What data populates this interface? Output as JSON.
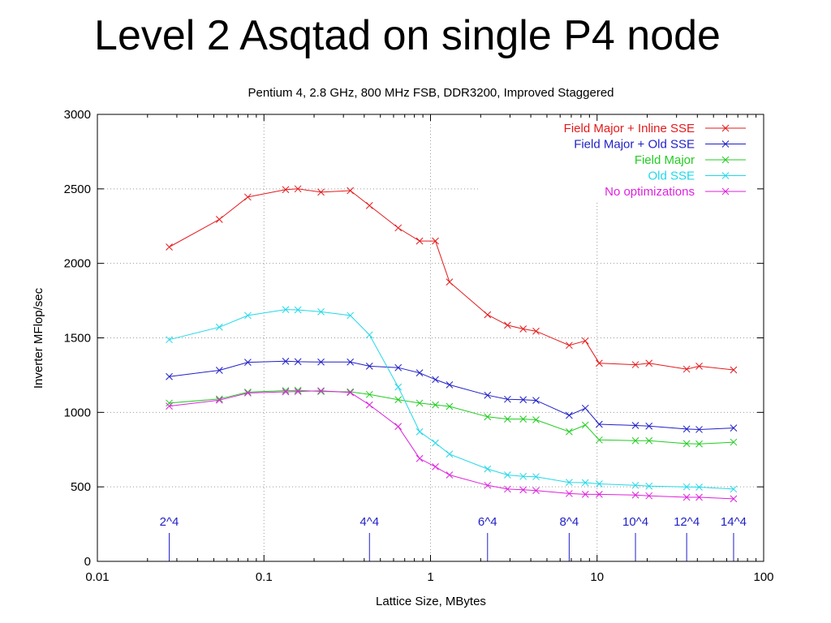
{
  "slide": {
    "title": "Level 2 Asqtad on single P4 node"
  },
  "chart_data": {
    "type": "line",
    "title": "Pentium 4, 2.8 GHz, 800 MHz FSB, DDR3200, Improved Staggered",
    "xlabel": "Lattice Size, MBytes",
    "ylabel": "Inverter MFlop/sec",
    "xscale": "log",
    "xlim": [
      0.01,
      100
    ],
    "ylim": [
      0,
      3000
    ],
    "grid": true,
    "legend_position": "top-right",
    "xticks": [
      {
        "value": 0.01,
        "label": "0.01"
      },
      {
        "value": 0.1,
        "label": "0.1"
      },
      {
        "value": 1,
        "label": "1"
      },
      {
        "value": 10,
        "label": "10"
      },
      {
        "value": 100,
        "label": "100"
      }
    ],
    "yticks": [
      {
        "value": 0,
        "label": "0"
      },
      {
        "value": 500,
        "label": "500"
      },
      {
        "value": 1000,
        "label": "1000"
      },
      {
        "value": 1500,
        "label": "1500"
      },
      {
        "value": 2000,
        "label": "2000"
      },
      {
        "value": 2500,
        "label": "2500"
      },
      {
        "value": 3000,
        "label": "3000"
      }
    ],
    "x": [
      0.027,
      0.054,
      0.08,
      0.135,
      0.16,
      0.22,
      0.33,
      0.43,
      0.64,
      0.86,
      1.07,
      1.3,
      2.2,
      2.9,
      3.6,
      4.3,
      6.8,
      8.5,
      10.3,
      17,
      20.5,
      34.5,
      41,
      66
    ],
    "series": [
      {
        "name": "Field Major + Inline SSE",
        "color": "#e41a1c",
        "values": [
          2110,
          2295,
          2445,
          2495,
          2500,
          2478,
          2488,
          2388,
          2238,
          2150,
          2150,
          1875,
          1655,
          1585,
          1560,
          1545,
          1450,
          1480,
          1330,
          1320,
          1330,
          1290,
          1310,
          1285
        ]
      },
      {
        "name": "Field Major + Old SSE",
        "color": "#1f1fc8",
        "values": [
          1240,
          1282,
          1336,
          1343,
          1340,
          1338,
          1338,
          1310,
          1300,
          1265,
          1220,
          1185,
          1115,
          1088,
          1085,
          1080,
          980,
          1028,
          920,
          912,
          908,
          888,
          885,
          895
        ]
      },
      {
        "name": "Field Major",
        "color": "#22cc22",
        "values": [
          1062,
          1090,
          1136,
          1146,
          1148,
          1140,
          1138,
          1120,
          1085,
          1062,
          1050,
          1040,
          970,
          955,
          955,
          950,
          870,
          915,
          815,
          810,
          810,
          790,
          788,
          800
        ]
      },
      {
        "name": "Old SSE",
        "color": "#22d8e8",
        "values": [
          1488,
          1572,
          1650,
          1690,
          1688,
          1675,
          1650,
          1520,
          1170,
          870,
          795,
          720,
          620,
          580,
          570,
          568,
          530,
          528,
          520,
          510,
          505,
          500,
          498,
          485
        ]
      },
      {
        "name": "No optimizations",
        "color": "#dd22dd",
        "values": [
          1042,
          1082,
          1130,
          1138,
          1140,
          1145,
          1133,
          1050,
          905,
          690,
          635,
          580,
          510,
          485,
          480,
          475,
          455,
          450,
          450,
          445,
          440,
          430,
          430,
          420
        ]
      }
    ],
    "annotations": [
      {
        "label": "2^4",
        "x": 0.027
      },
      {
        "label": "4^4",
        "x": 0.43
      },
      {
        "label": "6^4",
        "x": 2.2
      },
      {
        "label": "8^4",
        "x": 6.8
      },
      {
        "label": "10^4",
        "x": 17
      },
      {
        "label": "12^4",
        "x": 34.5
      },
      {
        "label": "14^4",
        "x": 66
      }
    ],
    "annotation_color": "#1f1fc8"
  }
}
